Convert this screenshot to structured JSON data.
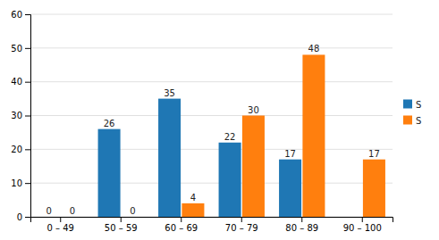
{
  "chart_data": {
    "type": "bar",
    "categories": [
      "0 – 49",
      "50 – 59",
      "60 – 69",
      "70 – 79",
      "80 – 89",
      "90 – 100"
    ],
    "series": [
      {
        "name": "S",
        "values": [
          0,
          26,
          35,
          22,
          17,
          0
        ],
        "value_labels": [
          "0",
          "26",
          "35",
          "22",
          "17",
          null
        ]
      },
      {
        "name": "S",
        "values": [
          0,
          0,
          4,
          30,
          48,
          17
        ]
      }
    ],
    "ylim": [
      0,
      60
    ],
    "yticks": [
      0,
      10,
      20,
      30,
      40,
      50,
      60
    ],
    "grid": true,
    "legend": "right",
    "data_labels": true
  }
}
